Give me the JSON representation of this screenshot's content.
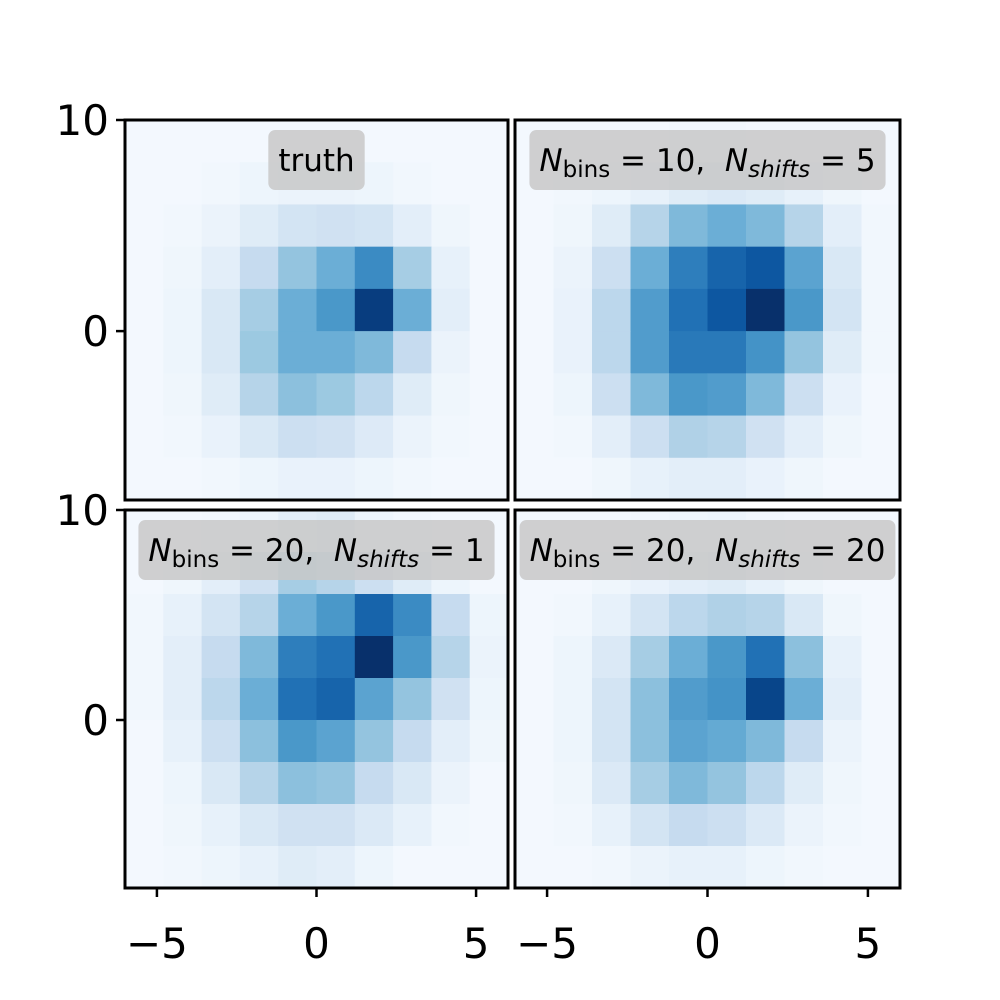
{
  "chart_data": [
    {
      "type": "heatmap",
      "cmap": "Blues",
      "title_parts": [
        {
          "text": "truth",
          "style": "normal"
        }
      ],
      "xlim": [
        -6,
        6
      ],
      "ylim": [
        -8,
        10
      ],
      "yticks": [
        0,
        10
      ],
      "xbins": [
        -6,
        -4.8,
        -3.6,
        -2.4,
        -1.2,
        0,
        1.2,
        2.4,
        3.6,
        4.8,
        6
      ],
      "ybins": [
        10,
        8,
        6,
        4,
        2,
        0,
        -2,
        -4,
        -6,
        -8
      ],
      "z": [
        [
          0.02,
          0.02,
          0.02,
          0.02,
          0.02,
          0.02,
          0.02,
          0.02,
          0.02,
          0.02
        ],
        [
          0.02,
          0.02,
          0.03,
          0.05,
          0.06,
          0.06,
          0.05,
          0.03,
          0.02,
          0.02
        ],
        [
          0.02,
          0.03,
          0.06,
          0.12,
          0.18,
          0.2,
          0.18,
          0.1,
          0.04,
          0.02
        ],
        [
          0.02,
          0.04,
          0.1,
          0.25,
          0.4,
          0.5,
          0.65,
          0.35,
          0.08,
          0.02
        ],
        [
          0.02,
          0.05,
          0.15,
          0.35,
          0.5,
          0.6,
          0.95,
          0.5,
          0.1,
          0.02
        ],
        [
          0.02,
          0.05,
          0.15,
          0.38,
          0.5,
          0.5,
          0.45,
          0.25,
          0.06,
          0.02
        ],
        [
          0.02,
          0.04,
          0.12,
          0.3,
          0.42,
          0.38,
          0.28,
          0.12,
          0.04,
          0.02
        ],
        [
          0.02,
          0.03,
          0.07,
          0.15,
          0.22,
          0.2,
          0.13,
          0.06,
          0.03,
          0.02
        ],
        [
          0.02,
          0.02,
          0.03,
          0.05,
          0.07,
          0.07,
          0.05,
          0.03,
          0.02,
          0.02
        ]
      ]
    },
    {
      "type": "heatmap",
      "cmap": "Blues",
      "title_parts": [
        {
          "text": "N",
          "style": "italic"
        },
        {
          "text": "bins",
          "style": "sub"
        },
        {
          "text": " = 10,  ",
          "style": "normal"
        },
        {
          "text": "N",
          "style": "italic"
        },
        {
          "text": "shifts",
          "style": "sub-italic"
        },
        {
          "text": " = 5",
          "style": "normal"
        }
      ],
      "xlim": [
        -6,
        6
      ],
      "ylim": [
        -8,
        10
      ],
      "xbins": [
        -6,
        -4.8,
        -3.6,
        -2.4,
        -1.2,
        0,
        1.2,
        2.4,
        3.6,
        4.8,
        6
      ],
      "ybins": [
        10,
        8,
        6,
        4,
        2,
        0,
        -2,
        -4,
        -6,
        -8
      ],
      "z": [
        [
          0.02,
          0.02,
          0.02,
          0.02,
          0.03,
          0.03,
          0.02,
          0.02,
          0.02,
          0.02
        ],
        [
          0.02,
          0.03,
          0.05,
          0.08,
          0.12,
          0.14,
          0.12,
          0.08,
          0.04,
          0.02
        ],
        [
          0.02,
          0.04,
          0.12,
          0.3,
          0.45,
          0.5,
          0.45,
          0.3,
          0.1,
          0.03
        ],
        [
          0.02,
          0.06,
          0.22,
          0.5,
          0.7,
          0.8,
          0.85,
          0.55,
          0.15,
          0.03
        ],
        [
          0.02,
          0.07,
          0.28,
          0.58,
          0.75,
          0.85,
          1.0,
          0.6,
          0.18,
          0.03
        ],
        [
          0.02,
          0.07,
          0.28,
          0.58,
          0.72,
          0.72,
          0.62,
          0.4,
          0.12,
          0.03
        ],
        [
          0.02,
          0.05,
          0.22,
          0.45,
          0.6,
          0.58,
          0.45,
          0.22,
          0.07,
          0.02
        ],
        [
          0.02,
          0.03,
          0.1,
          0.22,
          0.32,
          0.3,
          0.2,
          0.1,
          0.04,
          0.02
        ],
        [
          0.02,
          0.02,
          0.04,
          0.08,
          0.1,
          0.1,
          0.07,
          0.04,
          0.02,
          0.02
        ]
      ]
    },
    {
      "type": "heatmap",
      "cmap": "Blues",
      "title_parts": [
        {
          "text": "N",
          "style": "italic"
        },
        {
          "text": "bins",
          "style": "sub"
        },
        {
          "text": " = 20,  ",
          "style": "normal"
        },
        {
          "text": "N",
          "style": "italic"
        },
        {
          "text": "shifts",
          "style": "sub-italic"
        },
        {
          "text": " = 1",
          "style": "normal"
        }
      ],
      "xlim": [
        -6,
        6
      ],
      "ylim": [
        -8,
        10
      ],
      "yticks": [
        0,
        10
      ],
      "xticks": [
        {
          "value": -5,
          "label": "−5"
        },
        0,
        5
      ],
      "xbins": [
        -6,
        -4.8,
        -3.6,
        -2.4,
        -1.2,
        0,
        1.2,
        2.4,
        3.6,
        4.8,
        6
      ],
      "ybins": [
        10,
        8,
        6,
        4,
        2,
        0,
        -2,
        -4,
        -6,
        -8
      ],
      "z": [
        [
          0.02,
          0.02,
          0.03,
          0.05,
          0.1,
          0.12,
          0.05,
          0.03,
          0.02,
          0.02
        ],
        [
          0.02,
          0.04,
          0.1,
          0.2,
          0.35,
          0.3,
          0.22,
          0.12,
          0.05,
          0.02
        ],
        [
          0.03,
          0.08,
          0.18,
          0.3,
          0.5,
          0.6,
          0.8,
          0.65,
          0.25,
          0.05
        ],
        [
          0.03,
          0.1,
          0.25,
          0.45,
          0.7,
          0.75,
          1.0,
          0.6,
          0.3,
          0.06
        ],
        [
          0.03,
          0.1,
          0.28,
          0.5,
          0.75,
          0.8,
          0.55,
          0.4,
          0.2,
          0.05
        ],
        [
          0.02,
          0.08,
          0.22,
          0.42,
          0.6,
          0.55,
          0.4,
          0.25,
          0.1,
          0.04
        ],
        [
          0.02,
          0.05,
          0.15,
          0.3,
          0.42,
          0.4,
          0.25,
          0.15,
          0.06,
          0.02
        ],
        [
          0.02,
          0.04,
          0.08,
          0.15,
          0.2,
          0.2,
          0.14,
          0.08,
          0.03,
          0.02
        ],
        [
          0.02,
          0.03,
          0.05,
          0.08,
          0.12,
          0.1,
          0.05,
          0.02,
          0.02,
          0.02
        ]
      ]
    },
    {
      "type": "heatmap",
      "cmap": "Blues",
      "title_parts": [
        {
          "text": "N",
          "style": "italic"
        },
        {
          "text": "bins",
          "style": "sub"
        },
        {
          "text": " = 20,  ",
          "style": "normal"
        },
        {
          "text": "N",
          "style": "italic"
        },
        {
          "text": "shifts",
          "style": "sub-italic"
        },
        {
          "text": " = 20",
          "style": "normal"
        }
      ],
      "xlim": [
        -6,
        6
      ],
      "ylim": [
        -8,
        10
      ],
      "xticks": [
        {
          "value": -5,
          "label": "−5"
        },
        0,
        5
      ],
      "xbins": [
        -6,
        -4.8,
        -3.6,
        -2.4,
        -1.2,
        0,
        1.2,
        2.4,
        3.6,
        4.8,
        6
      ],
      "ybins": [
        10,
        8,
        6,
        4,
        2,
        0,
        -2,
        -4,
        -6,
        -8
      ],
      "z": [
        [
          0.02,
          0.02,
          0.02,
          0.03,
          0.04,
          0.05,
          0.03,
          0.02,
          0.02,
          0.02
        ],
        [
          0.02,
          0.02,
          0.04,
          0.07,
          0.1,
          0.12,
          0.08,
          0.04,
          0.02,
          0.02
        ],
        [
          0.02,
          0.03,
          0.08,
          0.18,
          0.28,
          0.32,
          0.3,
          0.15,
          0.04,
          0.02
        ],
        [
          0.02,
          0.05,
          0.14,
          0.35,
          0.5,
          0.6,
          0.75,
          0.42,
          0.08,
          0.02
        ],
        [
          0.02,
          0.05,
          0.18,
          0.42,
          0.58,
          0.62,
          0.92,
          0.5,
          0.1,
          0.02
        ],
        [
          0.02,
          0.05,
          0.18,
          0.42,
          0.55,
          0.52,
          0.45,
          0.25,
          0.06,
          0.02
        ],
        [
          0.02,
          0.04,
          0.14,
          0.35,
          0.45,
          0.4,
          0.28,
          0.12,
          0.04,
          0.02
        ],
        [
          0.02,
          0.03,
          0.08,
          0.18,
          0.25,
          0.22,
          0.14,
          0.06,
          0.03,
          0.02
        ],
        [
          0.02,
          0.02,
          0.03,
          0.06,
          0.08,
          0.08,
          0.05,
          0.03,
          0.02,
          0.02
        ]
      ]
    }
  ]
}
